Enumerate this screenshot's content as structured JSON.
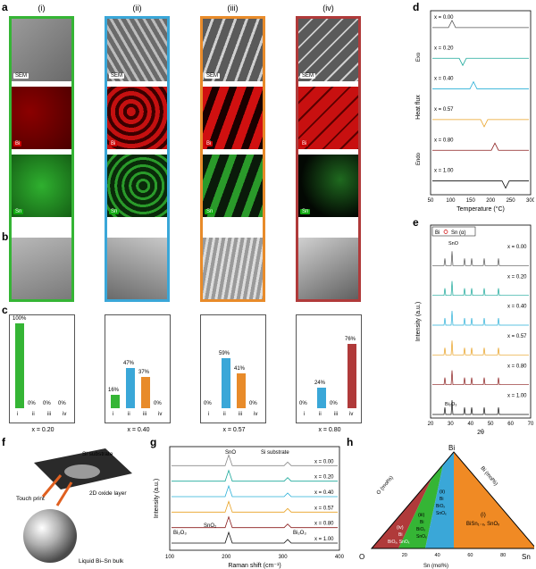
{
  "panel_labels": {
    "a": "a",
    "b": "b",
    "c": "c",
    "d": "d",
    "e": "e",
    "f": "f",
    "g": "g",
    "h": "h"
  },
  "a": {
    "columns": [
      {
        "label": "(i)",
        "color": "#35b535",
        "sem_bg": "#8a8a8a"
      },
      {
        "label": "(ii)",
        "color": "#3aa7d8",
        "sem_bg": "#6e6e6e"
      },
      {
        "label": "(iii)",
        "color": "#e88b2a",
        "sem_bg": "#767676"
      },
      {
        "label": "(iv)",
        "color": "#b03a3a",
        "sem_bg": "#7a7a7a"
      }
    ],
    "tags": {
      "sem": "SEM",
      "bi": "Bi",
      "sn": "Sn"
    }
  },
  "c": {
    "panels": [
      {
        "x_label": "x = 0.20",
        "values": [
          100,
          0,
          0,
          0
        ],
        "labels": [
          "100%",
          "0%",
          "0%",
          "0%"
        ]
      },
      {
        "x_label": "x = 0.40",
        "values": [
          16,
          47,
          37,
          0
        ],
        "labels": [
          "16%",
          "47%",
          "37%",
          "0%"
        ]
      },
      {
        "x_label": "x = 0.57",
        "values": [
          0,
          59,
          41,
          0
        ],
        "labels": [
          "0%",
          "59%",
          "41%",
          "0%"
        ]
      },
      {
        "x_label": "x = 0.80",
        "values": [
          0,
          24,
          0,
          76
        ],
        "labels": [
          "0%",
          "24%",
          "0%",
          "76%"
        ]
      }
    ],
    "categories": [
      "i",
      "ii",
      "iii",
      "iv"
    ],
    "colors": [
      "#35b535",
      "#3aa7d8",
      "#e88b2a",
      "#b03a3a"
    ]
  },
  "d": {
    "xlabel": "Temperature (°C)",
    "ylabel": "Heat flux",
    "exo": "Exo",
    "endo": "Endo",
    "ticks": [
      "50",
      "100",
      "150",
      "200",
      "250",
      "300"
    ],
    "series": [
      {
        "name": "x = 0.00",
        "color": "#555555"
      },
      {
        "name": "x = 0.20",
        "color": "#1aa89a"
      },
      {
        "name": "x = 0.40",
        "color": "#2ab0d8"
      },
      {
        "name": "x = 0.57",
        "color": "#e8a020"
      },
      {
        "name": "x = 0.80",
        "color": "#8a1c1c"
      },
      {
        "name": "x = 1.00",
        "color": "#111111"
      }
    ]
  },
  "e": {
    "xlabel": "2θ",
    "ylabel": "Intensity (a.u.)",
    "legend_bi": "Bi",
    "legend_sn": "Sn (α)",
    "sno": "SnO",
    "bi2o3": "Bi₂O₃",
    "ticks": [
      "20",
      "30",
      "40",
      "50",
      "60",
      "70"
    ],
    "series": [
      "x = 0.00",
      "x = 0.20",
      "x = 0.40",
      "x = 0.57",
      "x = 0.80",
      "x = 1.00"
    ]
  },
  "f": {
    "si_substrate": "Si substrate",
    "touch_print": "Touch print",
    "oxide": "2D oxide layer",
    "liquid": "Liquid Bi–Sn bulk"
  },
  "g": {
    "xlabel": "Raman shift (cm⁻¹)",
    "ylabel": "Intensity (a.u.)",
    "ticks": [
      "100",
      "200",
      "300",
      "400"
    ],
    "sno": "SnO",
    "si": "Si substrate",
    "sno2": "SnO₂",
    "bi2o3": "Bi₂O₃",
    "series": [
      "x = 0.00",
      "x = 0.20",
      "x = 0.40",
      "x = 0.57",
      "x = 0.80",
      "x = 1.00"
    ]
  },
  "h": {
    "bi": "Bi",
    "sn": "Sn",
    "o": "O",
    "o_axis": "O (mol%)",
    "bi_axis": "Bi (mol%)",
    "sn_axis": "Sn (mol%)",
    "ticks": [
      "20",
      "40",
      "60",
      "80"
    ],
    "region_i": "(i)",
    "region_i_text": "BiSn₁₋ₓ, SnOₓ",
    "region_ii": "(ii)",
    "region_ii_text": "Bi",
    "region_ii_text2": "BiOₓ",
    "region_ii_text3": "SnOₓ",
    "region_iii": "(iii)",
    "region_iii_text": "Bi",
    "region_iii_text2": "BiOₓ",
    "region_iii_text3": "SnOₓ",
    "region_iv": "(iv)",
    "region_iv_text": "Bi",
    "region_iv_text2": "BiOₓ, SnOₓ"
  }
}
